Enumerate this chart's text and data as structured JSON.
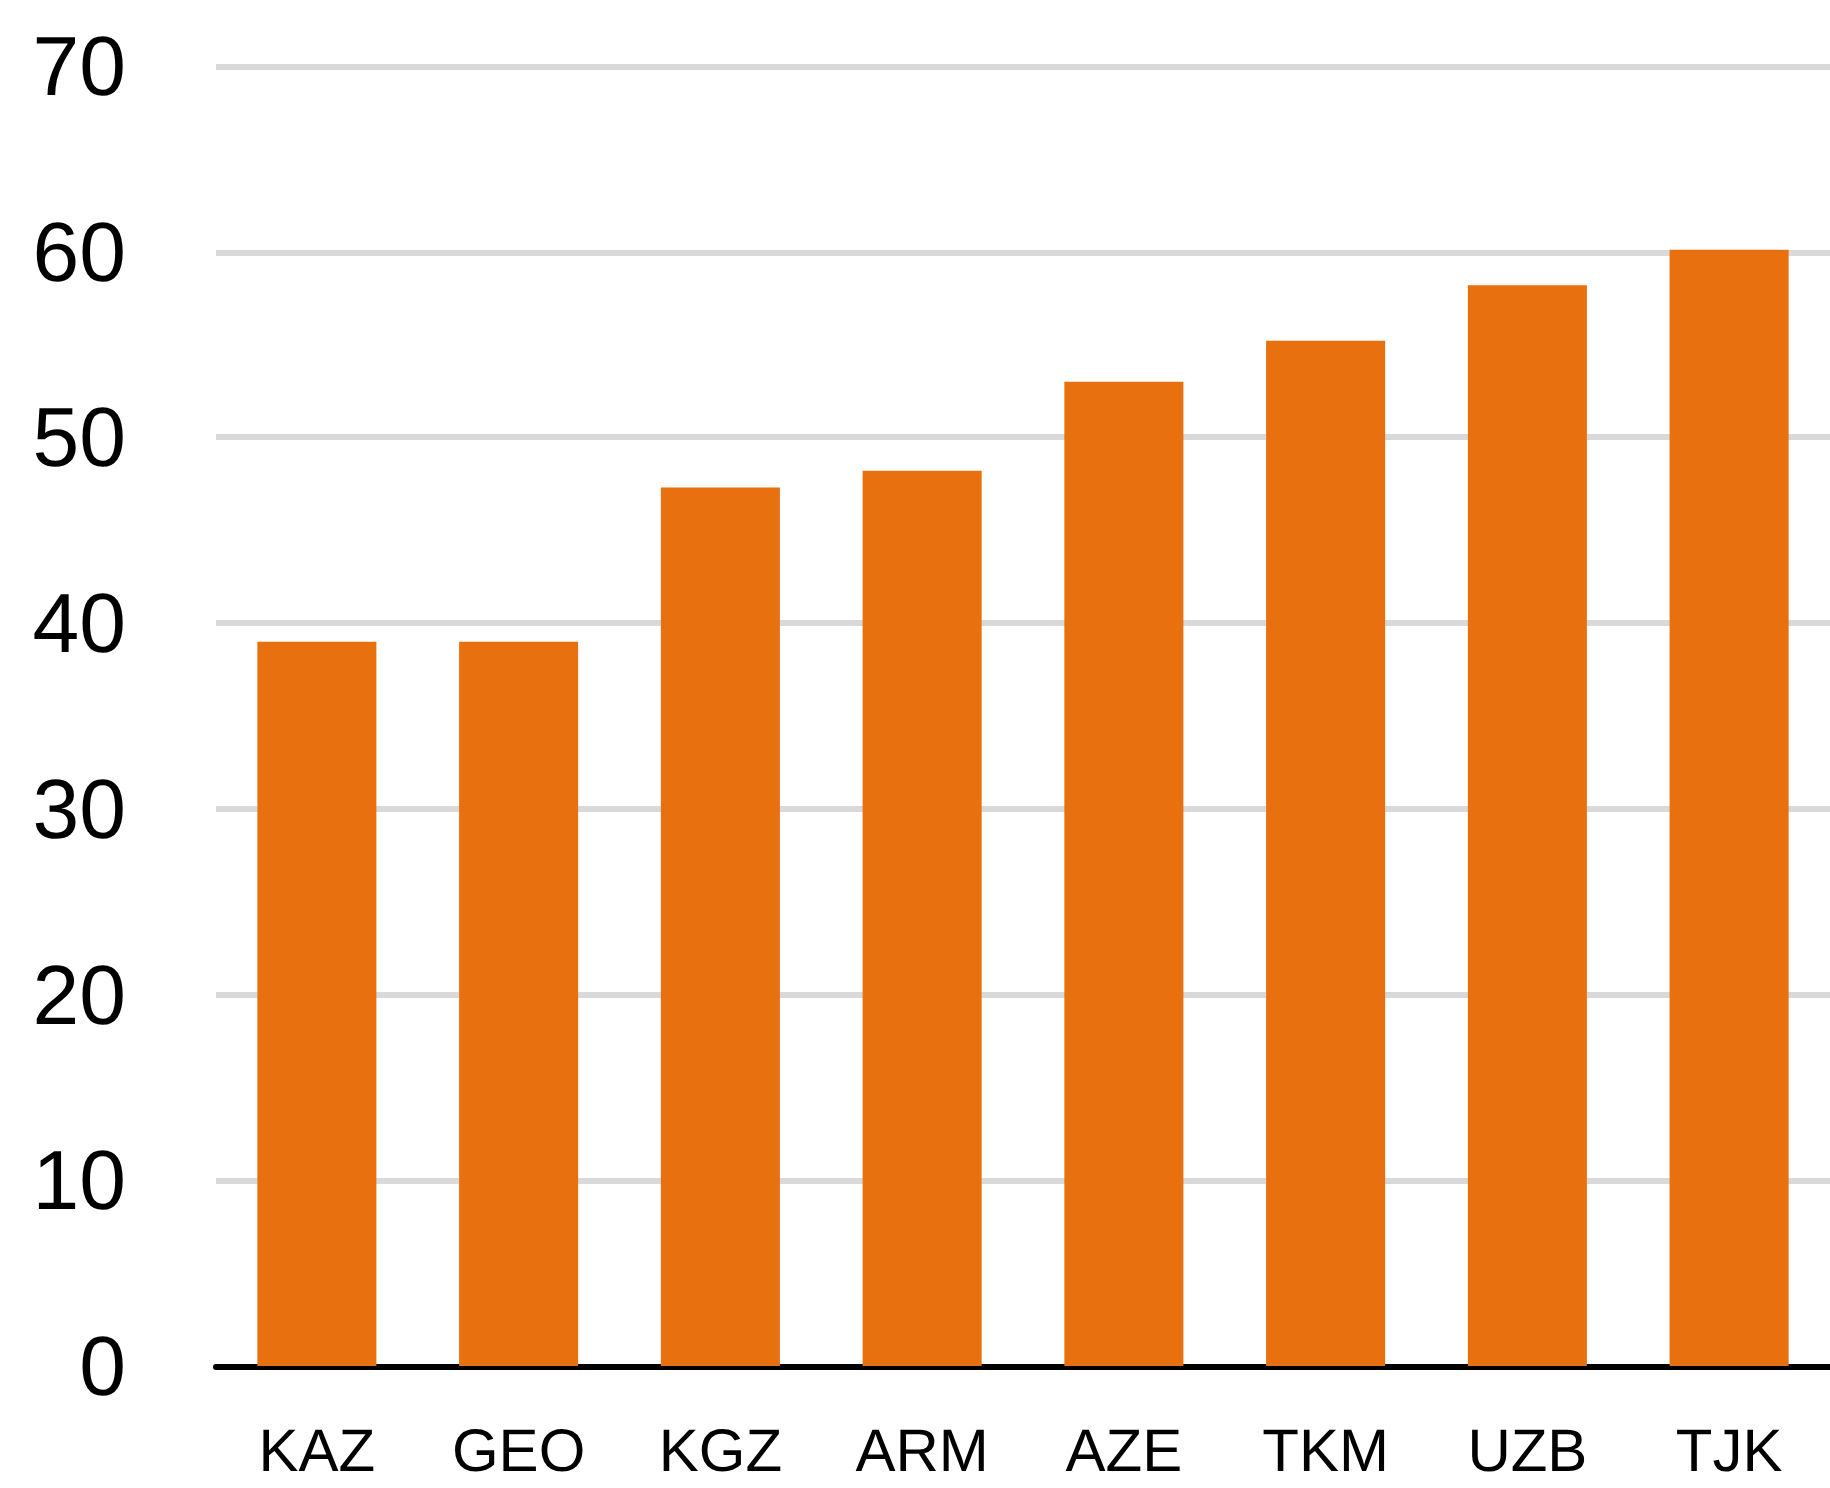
{
  "chart_data": {
    "type": "bar",
    "categories": [
      "KAZ",
      "GEO",
      "KGZ",
      "ARM",
      "AZE",
      "TKM",
      "UZB",
      "TJK"
    ],
    "values": [
      39,
      39,
      47.3,
      48.2,
      53,
      55.2,
      58.2,
      60.1
    ],
    "color": "#e8700e",
    "ylim": [
      0,
      70
    ],
    "yticks": [
      0,
      10,
      20,
      30,
      40,
      50,
      60,
      70
    ],
    "grid": "y"
  }
}
